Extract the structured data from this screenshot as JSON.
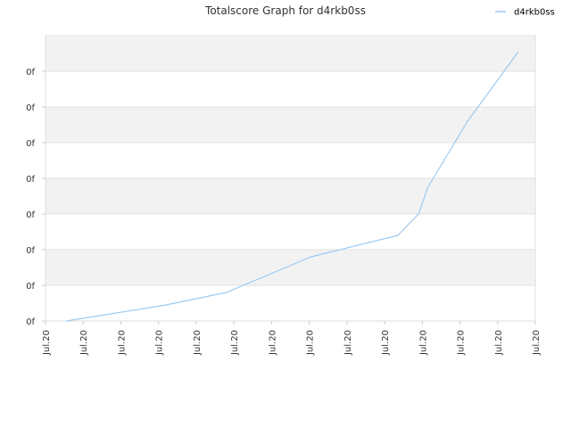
{
  "chart_data": {
    "type": "line",
    "title": "Totalscore Graph for d4rkb0ss",
    "xlabel": "",
    "ylabel": "",
    "x_tick_labels": [
      "Jul.20",
      "Jul.20",
      "Jul.20",
      "Jul.20",
      "Jul.20",
      "Jul.20",
      "Jul.20",
      "Jul.20",
      "Jul.20",
      "Jul.20",
      "Jul.20",
      "Jul.20",
      "Jul.20",
      "Jul.20"
    ],
    "y_tick_labels": [
      "0f",
      "0f",
      "0f",
      "0f",
      "0f",
      "0f",
      "0f",
      "0f"
    ],
    "xlim": [
      0,
      13
    ],
    "ylim": [
      0,
      8
    ],
    "grid": true,
    "legend_position": "top-right",
    "series": [
      {
        "name": "d4rkb0ss",
        "color": "#9ccaf2",
        "x": [
          0.55,
          2.2,
          3.2,
          4.8,
          7.05,
          9.35,
          9.9,
          10.15,
          11.2,
          12.55
        ],
        "y": [
          0.0,
          0.28,
          0.45,
          0.8,
          1.8,
          2.4,
          3.0,
          3.75,
          5.6,
          7.55
        ]
      }
    ]
  }
}
